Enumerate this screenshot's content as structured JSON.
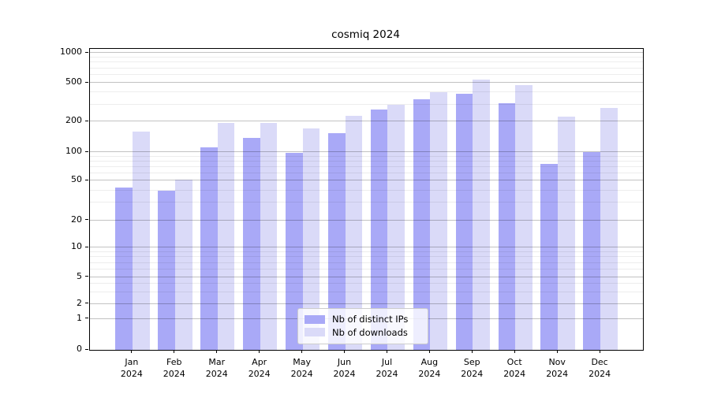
{
  "chart_data": {
    "type": "bar",
    "title": "cosmiq 2024",
    "categories": [
      "Jan",
      "Feb",
      "Mar",
      "Apr",
      "May",
      "Jun",
      "Jul",
      "Aug",
      "Sep",
      "Oct",
      "Nov",
      "Dec"
    ],
    "category_year_label": "2024",
    "series": [
      {
        "name": "Nb of distinct IPs",
        "color": "#a9a9f7",
        "values": [
          43,
          40,
          112,
          138,
          98,
          155,
          265,
          340,
          385,
          310,
          75,
          100
        ]
      },
      {
        "name": "Nb of downloads",
        "color": "#dadaf8",
        "values": [
          160,
          51,
          195,
          195,
          170,
          230,
          300,
          400,
          540,
          480,
          225,
          275
        ]
      }
    ],
    "xlabel": "",
    "ylabel": "",
    "yscale": "symlog",
    "ylim": [
      0,
      1050
    ],
    "y_axis_ticks": [
      0,
      1,
      2,
      5,
      10,
      20,
      50,
      100,
      200,
      500,
      1000
    ],
    "y_scale_anchors": [
      [
        0,
        0
      ],
      [
        1,
        0.1034
      ],
      [
        2,
        0.1531
      ],
      [
        5,
        0.2421
      ],
      [
        10,
        0.3395
      ],
      [
        20,
        0.4301
      ],
      [
        50,
        0.5621
      ],
      [
        100,
        0.6563
      ],
      [
        200,
        0.7584
      ],
      [
        500,
        0.8866
      ],
      [
        1000,
        0.9869
      ]
    ],
    "y_minor_gridlines": [
      3,
      4,
      6,
      7,
      8,
      9,
      30,
      40,
      60,
      70,
      80,
      90,
      300,
      400,
      600,
      700,
      800,
      900
    ],
    "grid": true,
    "legend_position": "lower center"
  },
  "colors": {
    "bar_distinct_ips": "#a9a9f7",
    "bar_downloads": "#dadaf8",
    "major_grid": "rgba(0,0,0,0.24)",
    "minor_grid": "rgba(0,0,0,0.07)",
    "spine": "#000000",
    "legend_border": "#cccccc",
    "legend_background": "rgba(255,255,255,0.8)"
  }
}
